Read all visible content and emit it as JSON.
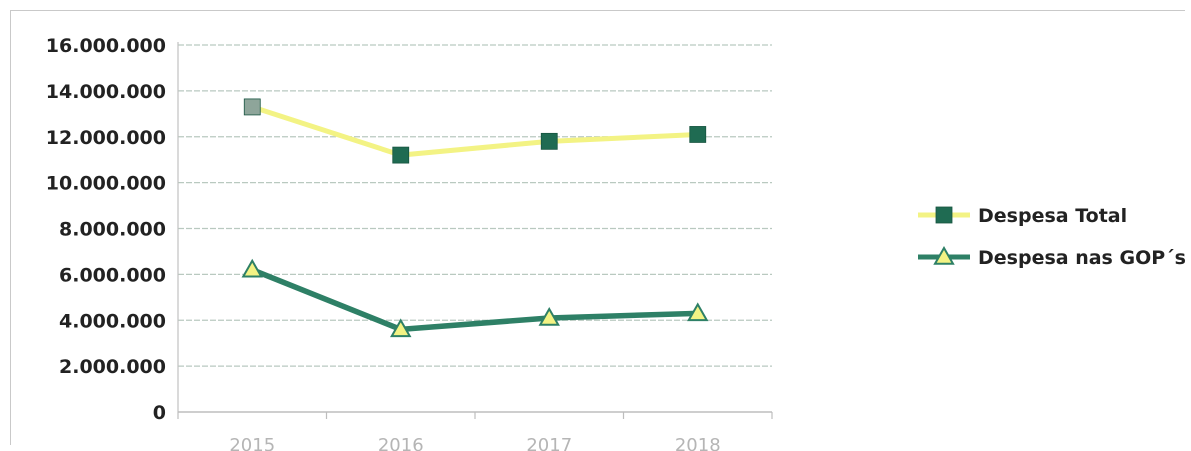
{
  "chart_data": {
    "type": "line",
    "categories": [
      "2015",
      "2016",
      "2017",
      "2018"
    ],
    "ylim": [
      0,
      16000000
    ],
    "yticks": [
      0,
      2000000,
      4000000,
      6000000,
      8000000,
      10000000,
      12000000,
      14000000,
      16000000
    ],
    "ytick_labels": [
      "0",
      "2.000.000",
      "4.000.000",
      "6.000.000",
      "8.000.000",
      "10.000.000",
      "12.000.000",
      "14.000.000",
      "16.000.000"
    ],
    "grid": true,
    "legend_position": "right",
    "series": [
      {
        "name": "Despesa Total",
        "values": [
          13300000,
          11200000,
          11800000,
          12100000
        ],
        "line_color": "#f3f384",
        "marker": "square",
        "marker_color": "#1f6b52",
        "first_marker_color": "#8ea59a"
      },
      {
        "name": "Despesa nas GOP´s",
        "values": [
          6200000,
          3600000,
          4100000,
          4300000
        ],
        "line_color": "#2e8066",
        "marker": "triangle",
        "marker_color": "#f3f384"
      }
    ]
  }
}
